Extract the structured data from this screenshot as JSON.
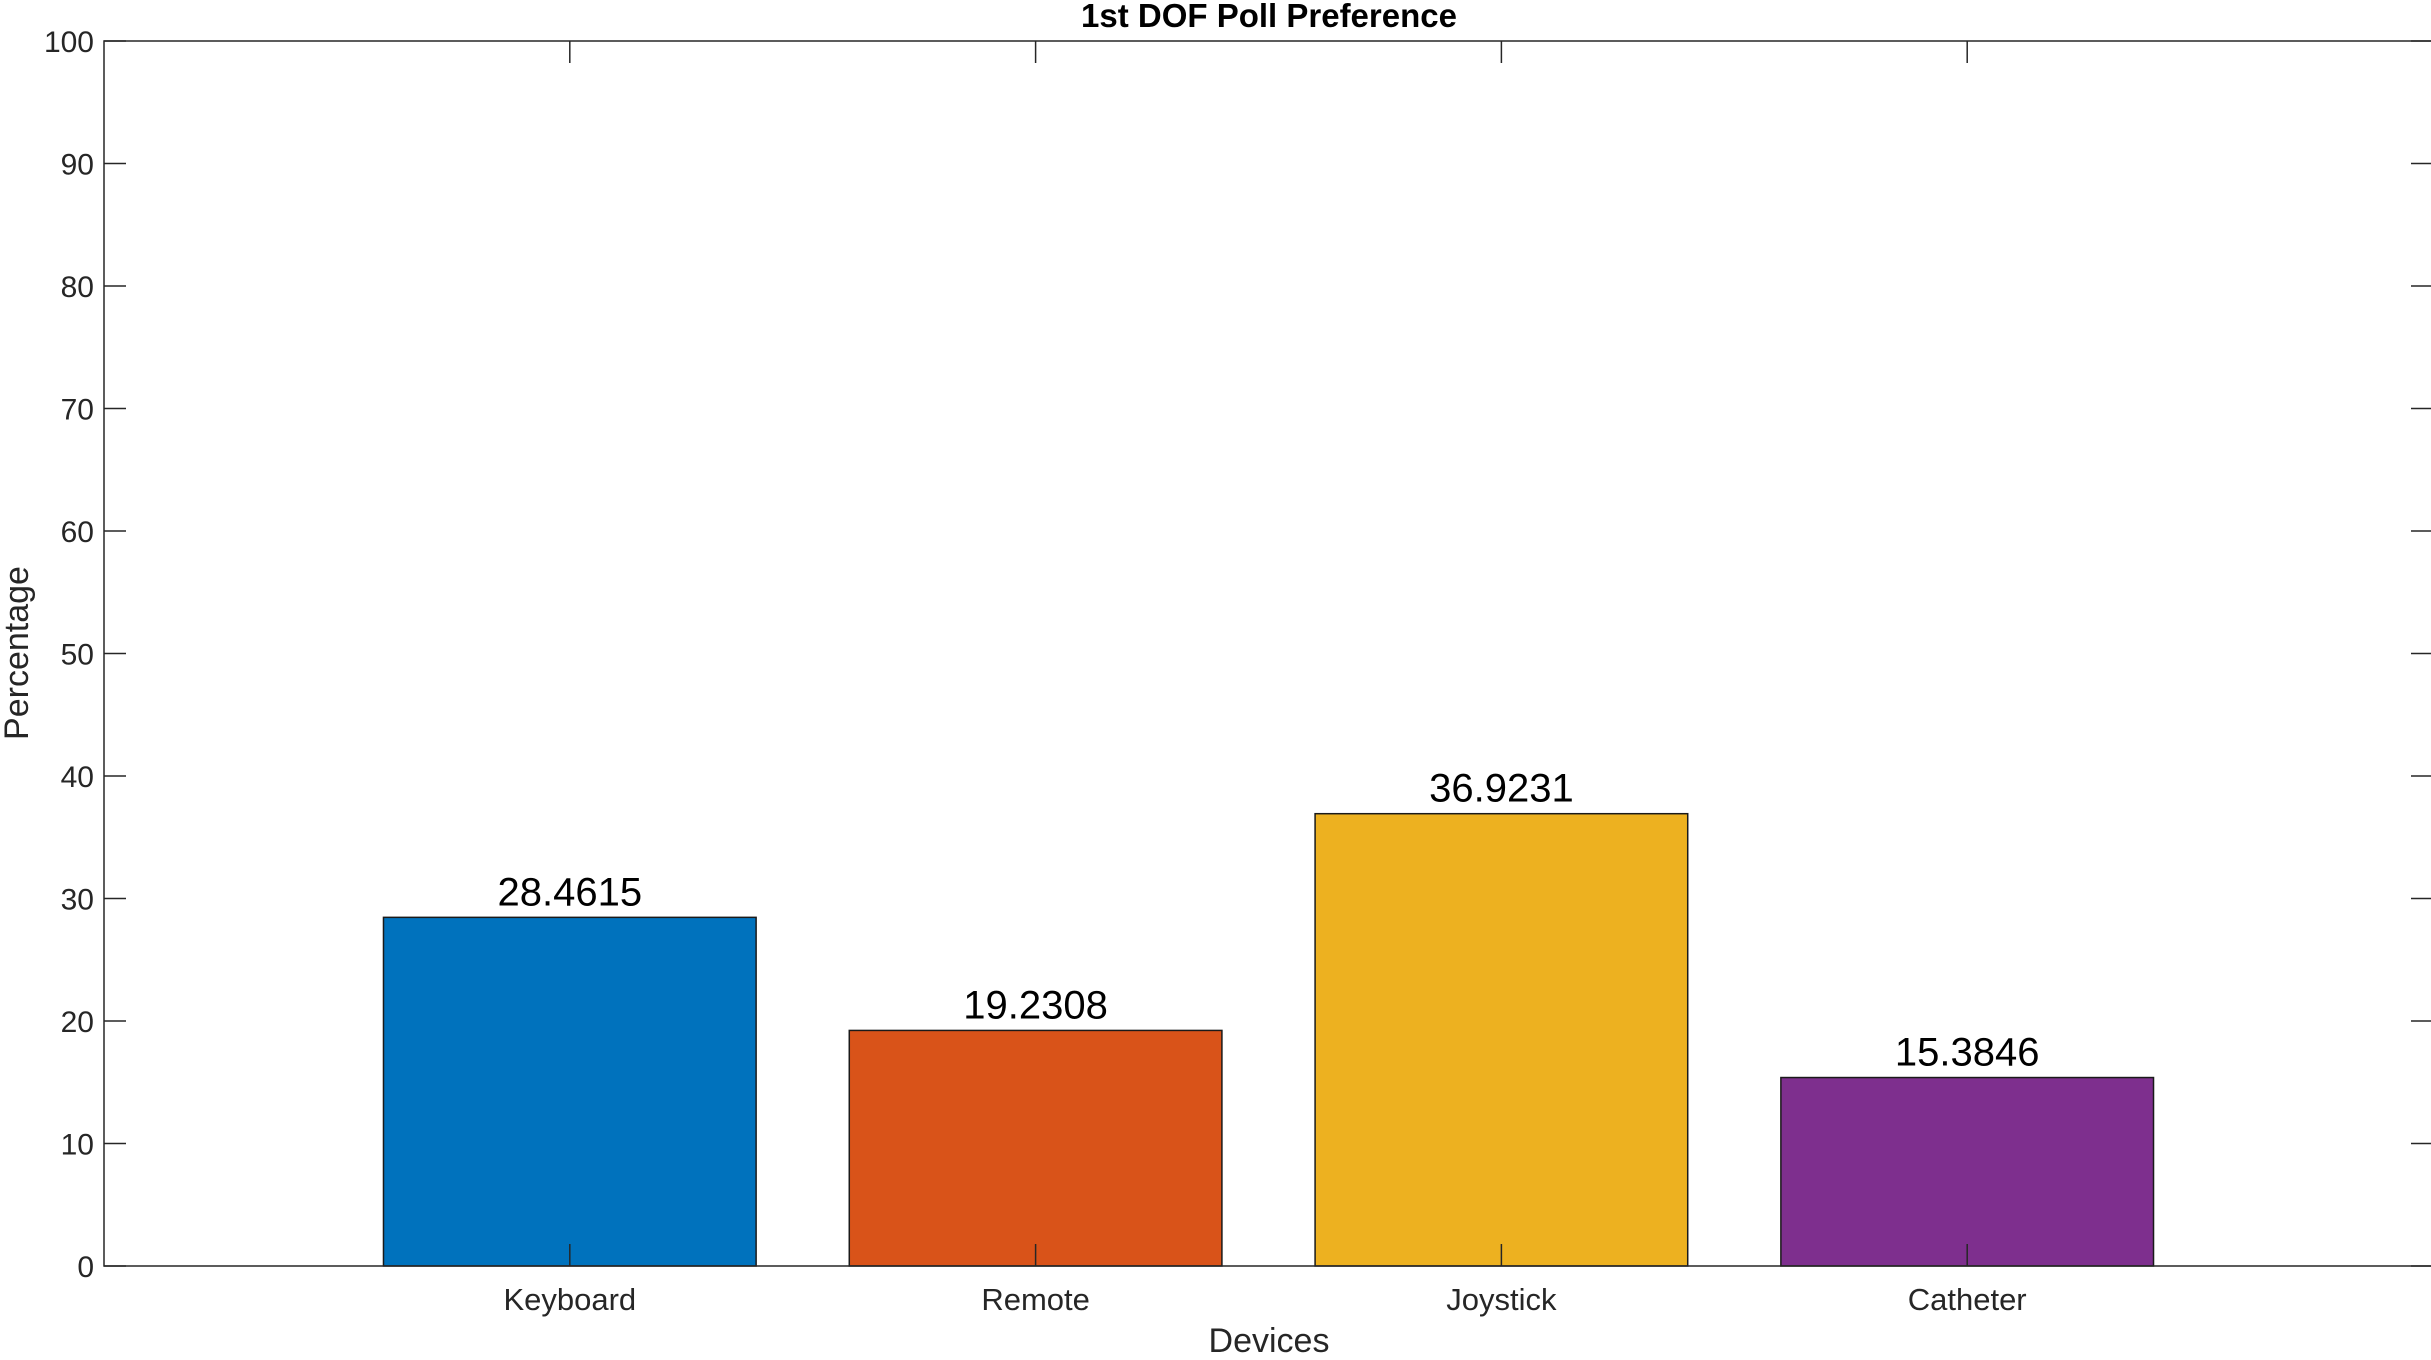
{
  "chart_data": {
    "type": "bar",
    "title": "1st DOF Poll Preference",
    "xlabel": "Devices",
    "ylabel": "Percentage",
    "categories": [
      "Keyboard",
      "Remote",
      "Joystick",
      "Catheter"
    ],
    "values": [
      28.4615,
      19.2308,
      36.9231,
      15.3846
    ],
    "value_labels": [
      "28.4615",
      "19.2308",
      "36.9231",
      "15.3846"
    ],
    "colors": [
      "#0072BD",
      "#D95319",
      "#EDB120",
      "#7E2F8E"
    ],
    "ylim": [
      0,
      100
    ],
    "yticks": [
      0,
      10,
      20,
      30,
      40,
      50,
      60,
      70,
      80,
      90,
      100
    ],
    "xlim": [
      0,
      5
    ],
    "grid": false,
    "box": true
  }
}
